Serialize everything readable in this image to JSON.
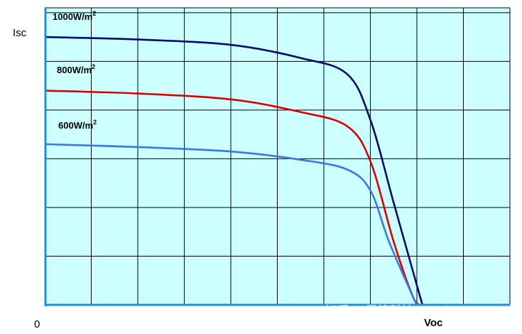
{
  "chart_data": {
    "type": "line",
    "title": "",
    "xlabel": "",
    "ylabel": "",
    "x_tick_labels": {
      "origin": "0",
      "end": "Voc"
    },
    "y_tick_labels": {
      "top": "Isc"
    },
    "xlim": [
      0,
      10
    ],
    "ylim": [
      0,
      6.1
    ],
    "grid": true,
    "background_color": "#ccffff",
    "grid_color": "#000000",
    "axis_color": "#1f8fd8",
    "series": [
      {
        "name": "1000W/m2",
        "label_main": "1000W/m",
        "label_sup": "2",
        "color": "#000a6e",
        "points": [
          [
            0,
            5.5
          ],
          [
            2,
            5.45
          ],
          [
            4,
            5.34
          ],
          [
            5.5,
            5.07
          ],
          [
            6.5,
            4.74
          ],
          [
            7,
            3.8
          ],
          [
            7.5,
            2.1
          ],
          [
            8,
            0.4
          ],
          [
            8.12,
            0
          ]
        ]
      },
      {
        "name": "800W/m2",
        "label_main": "800W/m",
        "label_sup": "2",
        "color": "#dd0000",
        "points": [
          [
            0,
            4.4
          ],
          [
            2,
            4.34
          ],
          [
            4,
            4.22
          ],
          [
            5.5,
            3.96
          ],
          [
            6.5,
            3.67
          ],
          [
            7,
            2.95
          ],
          [
            7.5,
            1.3
          ],
          [
            7.9,
            0.2
          ],
          [
            8.05,
            0
          ]
        ]
      },
      {
        "name": "600W/m2",
        "label_main": "600W/m",
        "label_sup": "2",
        "color": "#3a78e0",
        "points": [
          [
            0,
            3.3
          ],
          [
            2,
            3.24
          ],
          [
            4,
            3.15
          ],
          [
            5.5,
            2.98
          ],
          [
            6.5,
            2.78
          ],
          [
            7,
            2.35
          ],
          [
            7.4,
            1.3
          ],
          [
            7.9,
            0.2
          ],
          [
            8.0,
            0
          ]
        ]
      }
    ]
  },
  "watermark": "知乎 @是德科技 Keysigh..."
}
